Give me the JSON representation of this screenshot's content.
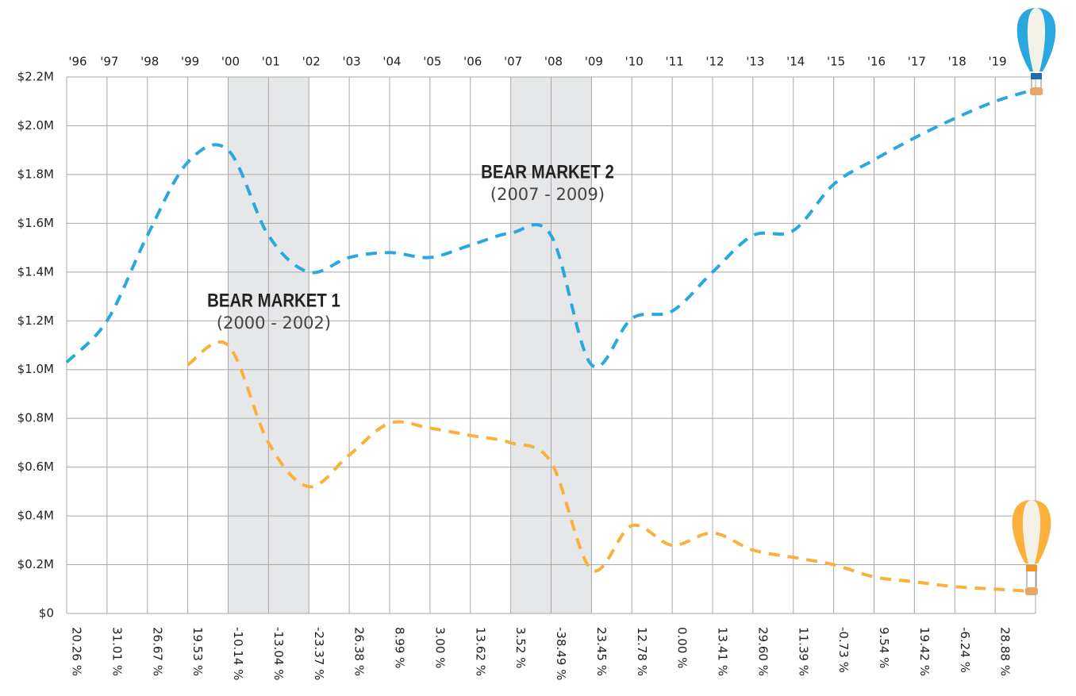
{
  "chart_data": {
    "type": "line",
    "categories": [
      "'96",
      "'97",
      "'98",
      "'99",
      "'00",
      "'01",
      "'02",
      "'03",
      "'04",
      "'05",
      "'06",
      "'07",
      "'08",
      "'09",
      "'10",
      "'11",
      "'12",
      "'13",
      "'14",
      "'15",
      "'16",
      "'17",
      "'18",
      "'19",
      null
    ],
    "series": [
      {
        "color": "#29a8e0",
        "values": [
          1.03,
          1.2,
          1.55,
          1.85,
          1.9,
          1.55,
          1.4,
          1.46,
          1.48,
          1.46,
          1.51,
          1.56,
          1.55,
          1.02,
          1.21,
          1.24,
          1.4,
          1.55,
          1.57,
          1.76,
          1.86,
          1.95,
          2.03,
          2.1,
          2.15
        ]
      },
      {
        "color": "#fbb03b",
        "values": [
          null,
          null,
          null,
          1.02,
          1.1,
          0.7,
          0.52,
          0.65,
          0.78,
          0.76,
          0.73,
          0.7,
          0.62,
          0.18,
          0.36,
          0.28,
          0.33,
          0.26,
          0.23,
          0.2,
          0.15,
          0.13,
          0.11,
          0.1,
          0.09
        ]
      }
    ],
    "ylim": [
      0,
      2.2
    ],
    "yticks": [
      {
        "value": 0,
        "label": "$0"
      },
      {
        "value": 0.2,
        "label": "$0.2M"
      },
      {
        "value": 0.4,
        "label": "$0.4M"
      },
      {
        "value": 0.6,
        "label": "$0.6M"
      },
      {
        "value": 0.8,
        "label": "$0.8M"
      },
      {
        "value": 1.0,
        "label": "$1.0M"
      },
      {
        "value": 1.2,
        "label": "$1.2M"
      },
      {
        "value": 1.4,
        "label": "$1.4M"
      },
      {
        "value": 1.6,
        "label": "$1.6M"
      },
      {
        "value": 1.8,
        "label": "$1.8M"
      },
      {
        "value": 2.0,
        "label": "$2.0M"
      },
      {
        "value": 2.2,
        "label": "$2.2M"
      }
    ],
    "grid": true,
    "returns": [
      20.26,
      31.01,
      26.67,
      19.53,
      -10.14,
      -13.04,
      -23.37,
      26.38,
      8.99,
      3.0,
      13.62,
      3.52,
      -38.49,
      23.45,
      12.78,
      0.0,
      13.41,
      29.6,
      11.39,
      -0.73,
      9.54,
      19.42,
      -6.24,
      28.88
    ],
    "returns_labels": [
      "20.26 %",
      "31.01 %",
      "26.67 %",
      "19.53 %",
      "-10.14 %",
      "-13.04 %",
      "-23.37 %",
      "26.38 %",
      "8.99 %",
      "3.00 %",
      "13.62 %",
      "3.52 %",
      "-38.49 %",
      "23.45 %",
      "12.78 %",
      "0.00 %",
      "13.41 %",
      "29.60 %",
      "11.39 %",
      "-0.73 %",
      "9.54 %",
      "19.42 %",
      "-6.24 %",
      "28.88 %"
    ],
    "positive_color": "#1f9a3e",
    "negative_color": "#c1272d",
    "shaded_regions": [
      {
        "start": 4,
        "end": 6,
        "label": "BEAR MARKET 1",
        "sublabel": "(2000 - 2002)"
      },
      {
        "start": 11,
        "end": 13,
        "label": "BEAR MARKET 2",
        "sublabel": "(2007 - 2009)"
      }
    ]
  }
}
